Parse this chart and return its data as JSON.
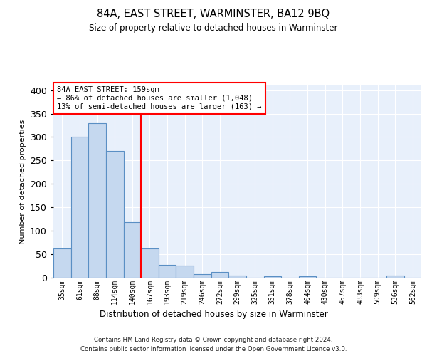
{
  "title": "84A, EAST STREET, WARMINSTER, BA12 9BQ",
  "subtitle": "Size of property relative to detached houses in Warminster",
  "xlabel": "Distribution of detached houses by size in Warminster",
  "ylabel": "Number of detached properties",
  "categories": [
    "35sqm",
    "61sqm",
    "88sqm",
    "114sqm",
    "140sqm",
    "167sqm",
    "193sqm",
    "219sqm",
    "246sqm",
    "272sqm",
    "299sqm",
    "325sqm",
    "351sqm",
    "378sqm",
    "404sqm",
    "430sqm",
    "457sqm",
    "483sqm",
    "509sqm",
    "536sqm",
    "562sqm"
  ],
  "values": [
    62,
    300,
    330,
    270,
    118,
    63,
    27,
    26,
    7,
    12,
    5,
    0,
    3,
    0,
    3,
    0,
    0,
    0,
    0,
    4,
    0
  ],
  "bar_color": "#c5d8ef",
  "bar_edge_color": "#5a8fc4",
  "vline_x": 4.5,
  "vline_color": "red",
  "annotation_text": "84A EAST STREET: 159sqm\n← 86% of detached houses are smaller (1,048)\n13% of semi-detached houses are larger (163) →",
  "annotation_box_color": "white",
  "annotation_box_edge": "red",
  "ylim": [
    0,
    410
  ],
  "yticks": [
    0,
    50,
    100,
    150,
    200,
    250,
    300,
    350,
    400
  ],
  "footer1": "Contains HM Land Registry data © Crown copyright and database right 2024.",
  "footer2": "Contains public sector information licensed under the Open Government Licence v3.0.",
  "bg_color": "#e8f0fb",
  "fig_bg_color": "white"
}
